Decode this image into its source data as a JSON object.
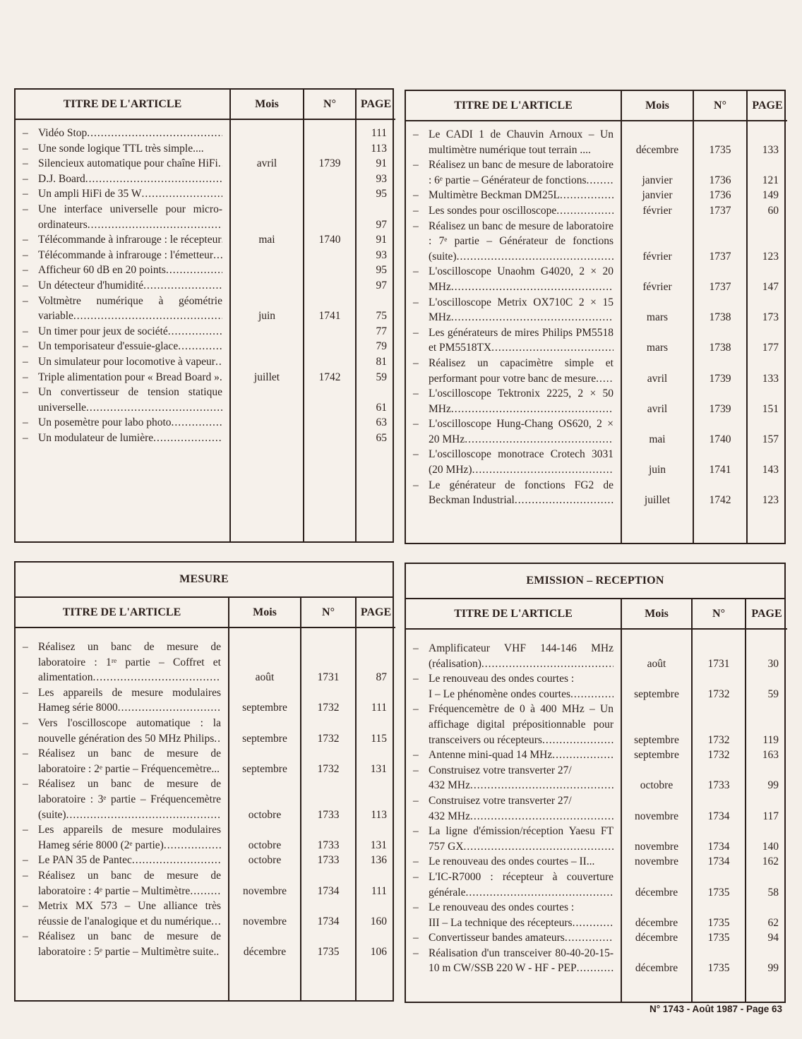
{
  "columns": {
    "title": "TITRE DE L'ARTICLE",
    "month": "Mois",
    "number": "N°",
    "page": "PAGE"
  },
  "tables": [
    {
      "section": "",
      "rows": [
        {
          "title": "Vidéo Stop",
          "month": "",
          "number": "",
          "page": "111"
        },
        {
          "title": "Une sonde logique TTL très simple....",
          "month": "",
          "number": "",
          "page": "113",
          "nolead": true
        },
        {
          "title": "Silencieux automatique pour chaîne HiFi",
          "month": "avril",
          "number": "1739",
          "page": "91"
        },
        {
          "title": "D.J. Board",
          "month": "",
          "number": "",
          "page": "93"
        },
        {
          "title": "Un ampli HiFi de 35 W",
          "month": "",
          "number": "",
          "page": "95"
        },
        {
          "title": "Une interface universelle pour micro-ordinateurs",
          "month": "",
          "number": "",
          "page": "97"
        },
        {
          "title": "Télécommande à infrarouge : le récepteur",
          "month": "mai",
          "number": "1740",
          "page": "91"
        },
        {
          "title": "Télécommande à infrarouge : l'émetteur",
          "month": "",
          "number": "",
          "page": "93"
        },
        {
          "title": "Afficheur 60 dB en 20 points",
          "month": "",
          "number": "",
          "page": "95"
        },
        {
          "title": "Un détecteur d'humidité",
          "month": "",
          "number": "",
          "page": "97"
        },
        {
          "title": "Voltmètre numérique à géométrie variable",
          "month": "juin",
          "number": "1741",
          "page": "75"
        },
        {
          "title": "Un timer pour jeux de société",
          "month": "",
          "number": "",
          "page": "77"
        },
        {
          "title": "Un temporisateur d'essuie-glace",
          "month": "",
          "number": "",
          "page": "79"
        },
        {
          "title": "Un simulateur pour locomotive à vapeur",
          "month": "",
          "number": "",
          "page": "81"
        },
        {
          "title": "Triple alimentation pour « Bread Board »",
          "month": "juillet",
          "number": "1742",
          "page": "59"
        },
        {
          "title": "Un convertisseur de tension statique universelle",
          "month": "",
          "number": "",
          "page": "61"
        },
        {
          "title": "Un posemètre pour labo photo",
          "month": "",
          "number": "",
          "page": "63"
        },
        {
          "title": "Un modulateur de lumière",
          "month": "",
          "number": "",
          "page": "65"
        }
      ]
    },
    {
      "section": "",
      "rows": [
        {
          "title": "Le CADI 1 de Chauvin Arnoux – Un multimètre numérique tout terrain ....",
          "month": "décembre",
          "number": "1735",
          "page": "133",
          "nolead": true
        },
        {
          "title": "Réalisez un banc de mesure de laboratoire : 6ᵉ partie – Générateur de fonctions",
          "month": "janvier",
          "number": "1736",
          "page": "121"
        },
        {
          "title": "Multimètre Beckman DM25L",
          "month": "janvier",
          "number": "1736",
          "page": "149"
        },
        {
          "title": "Les sondes pour oscilloscope",
          "month": "février",
          "number": "1737",
          "page": "60"
        },
        {
          "title": "Réalisez un banc de mesure de laboratoire : 7ᵉ partie – Générateur de fonctions (suite)",
          "month": "février",
          "number": "1737",
          "page": "123"
        },
        {
          "title": "L'oscilloscope Unaohm G4020, 2 × 20 MHz",
          "month": "février",
          "number": "1737",
          "page": "147"
        },
        {
          "title": "L'oscilloscope Metrix OX710C 2 × 15 MHz",
          "month": "mars",
          "number": "1738",
          "page": "173"
        },
        {
          "title": "Les générateurs de mires Philips PM5518 et PM5518TX",
          "month": "mars",
          "number": "1738",
          "page": "177"
        },
        {
          "title": "Réalisez un capacimètre simple et performant pour votre banc de mesure",
          "month": "avril",
          "number": "1739",
          "page": "133"
        },
        {
          "title": "L'oscilloscope Tektronix 2225, 2 × 50 MHz",
          "month": "avril",
          "number": "1739",
          "page": "151"
        },
        {
          "title": "L'oscilloscope Hung-Chang OS620, 2 × 20 MHz",
          "month": "mai",
          "number": "1740",
          "page": "157"
        },
        {
          "title": "L'oscilloscope monotrace Crotech 3031 (20 MHz)",
          "month": "juin",
          "number": "1741",
          "page": "143"
        },
        {
          "title": "Le générateur de fonctions FG2 de Beckman Industrial",
          "month": "juillet",
          "number": "1742",
          "page": "123"
        }
      ]
    },
    {
      "section": "MESURE",
      "rows": [
        {
          "title": "Réalisez un banc de mesure de laboratoire : 1ʳᵉ partie – Coffret et alimentation",
          "month": "août",
          "number": "1731",
          "page": "87"
        },
        {
          "title": "Les appareils de mesure modulaires Hameg série 8000",
          "month": "septembre",
          "number": "1732",
          "page": "111"
        },
        {
          "title": "Vers l'oscilloscope automatique : la nouvelle génération des 50 MHz Philips",
          "month": "septembre",
          "number": "1732",
          "page": "115"
        },
        {
          "title": "Réalisez un banc de mesure de laboratoire : 2ᵉ partie – Fréquencemètre...",
          "month": "septembre",
          "number": "1732",
          "page": "131",
          "nolead": true
        },
        {
          "title": "Réalisez un banc de mesure de laboratoire : 3ᵉ partie – Fréquencemètre (suite)",
          "month": "octobre",
          "number": "1733",
          "page": "113"
        },
        {
          "title": "Les appareils de mesure modulaires Hameg série 8000 (2ᵉ partie)",
          "month": "octobre",
          "number": "1733",
          "page": "131"
        },
        {
          "title": "Le PAN 35 de Pantec",
          "month": "octobre",
          "number": "1733",
          "page": "136"
        },
        {
          "title": "Réalisez un banc de mesure de laboratoire : 4ᵉ partie – Multimètre",
          "month": "novembre",
          "number": "1734",
          "page": "111"
        },
        {
          "title": "Metrix MX 573 – Une alliance très réussie de l'analogique et du numérique",
          "month": "novembre",
          "number": "1734",
          "page": "160"
        },
        {
          "title": "Réalisez un banc de mesure de laboratoire : 5ᵉ partie – Multimètre suite..",
          "month": "décembre",
          "number": "1735",
          "page": "106",
          "nolead": true
        }
      ]
    },
    {
      "section": "EMISSION – RECEPTION",
      "rows": [
        {
          "title": "Amplificateur VHF 144-146 MHz (réalisation)",
          "month": "août",
          "number": "1731",
          "page": "30"
        },
        {
          "title": "Le renouveau des ondes courtes :\nI – Le phénomène ondes courtes",
          "month": "septembre",
          "number": "1732",
          "page": "59"
        },
        {
          "title": "Fréquencemètre de 0 à 400 MHz – Un affichage digital prépositionnable pour transceivers ou récepteurs",
          "month": "septembre",
          "number": "1732",
          "page": "119"
        },
        {
          "title": "Antenne mini-quad 14 MHz",
          "month": "septembre",
          "number": "1732",
          "page": "163"
        },
        {
          "title": "Construisez votre transverter 27/\n432 MHz",
          "month": "octobre",
          "number": "1733",
          "page": "99"
        },
        {
          "title": "Construisez votre transverter 27/\n432 MHz",
          "month": "novembre",
          "number": "1734",
          "page": "117"
        },
        {
          "title": "La ligne d'émission/réception Yaesu FT 757 GX",
          "month": "novembre",
          "number": "1734",
          "page": "140"
        },
        {
          "title": "Le renouveau des ondes courtes – II...",
          "month": "novembre",
          "number": "1734",
          "page": "162",
          "nolead": true
        },
        {
          "title": "L'IC-R7000 : récepteur à couverture générale",
          "month": "décembre",
          "number": "1735",
          "page": "58"
        },
        {
          "title": "Le renouveau des ondes courtes :\nIII – La technique des récepteurs",
          "month": "décembre",
          "number": "1735",
          "page": "62"
        },
        {
          "title": "Convertisseur bandes amateurs",
          "month": "décembre",
          "number": "1735",
          "page": "94"
        },
        {
          "title": "Réalisation d'un transceiver 80-40-20-15-10 m CW/SSB 220 W - HF - PEP",
          "month": "décembre",
          "number": "1735",
          "page": "99"
        }
      ]
    }
  ],
  "dash": "–",
  "footer": "N° 1743 - Août 1987 - Page 63"
}
